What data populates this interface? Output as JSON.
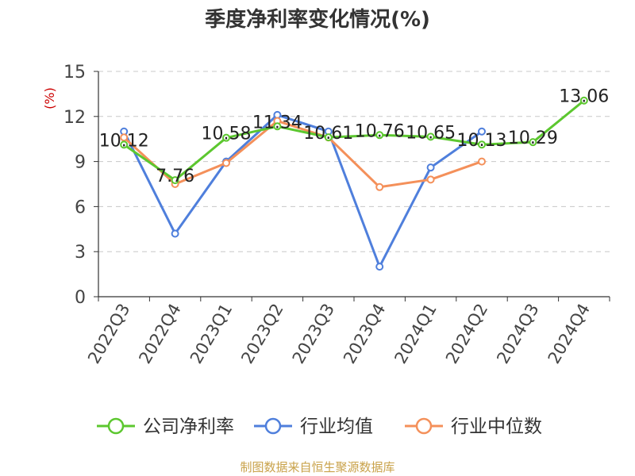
{
  "chart_data": {
    "type": "line",
    "title": "季度净利率变化情况(%)",
    "ylabel": "(%)",
    "xlabel": "",
    "ylim": [
      0,
      15
    ],
    "yticks": [
      0,
      3,
      6,
      9,
      12,
      15
    ],
    "grid": true,
    "legend_position": "bottom",
    "categories": [
      "2022Q3",
      "2022Q4",
      "2023Q1",
      "2023Q2",
      "2023Q3",
      "2023Q4",
      "2024Q1",
      "2024Q2",
      "2024Q3",
      "2024Q4"
    ],
    "series": [
      {
        "name": "公司净利率",
        "color": "#5cc72f",
        "show_labels": true,
        "values": [
          10.12,
          7.76,
          10.58,
          11.34,
          10.61,
          10.76,
          10.65,
          10.13,
          10.29,
          13.06
        ],
        "labels": [
          "10.12",
          "7.76",
          "10.58",
          "11.34",
          "10.61",
          "10.76",
          "10.65",
          "10.13",
          "10.29",
          "13.06"
        ]
      },
      {
        "name": "行业均值",
        "color": "#4f7fdc",
        "show_labels": false,
        "values": [
          11.0,
          4.2,
          9.0,
          12.1,
          11.0,
          2.0,
          8.6,
          11.0,
          null,
          null
        ]
      },
      {
        "name": "行业中位数",
        "color": "#f4905a",
        "show_labels": false,
        "values": [
          10.6,
          7.5,
          8.9,
          11.7,
          10.6,
          7.3,
          7.8,
          9.0,
          null,
          null
        ]
      }
    ]
  },
  "source_note": "制图数据来自恒生聚源数据库"
}
